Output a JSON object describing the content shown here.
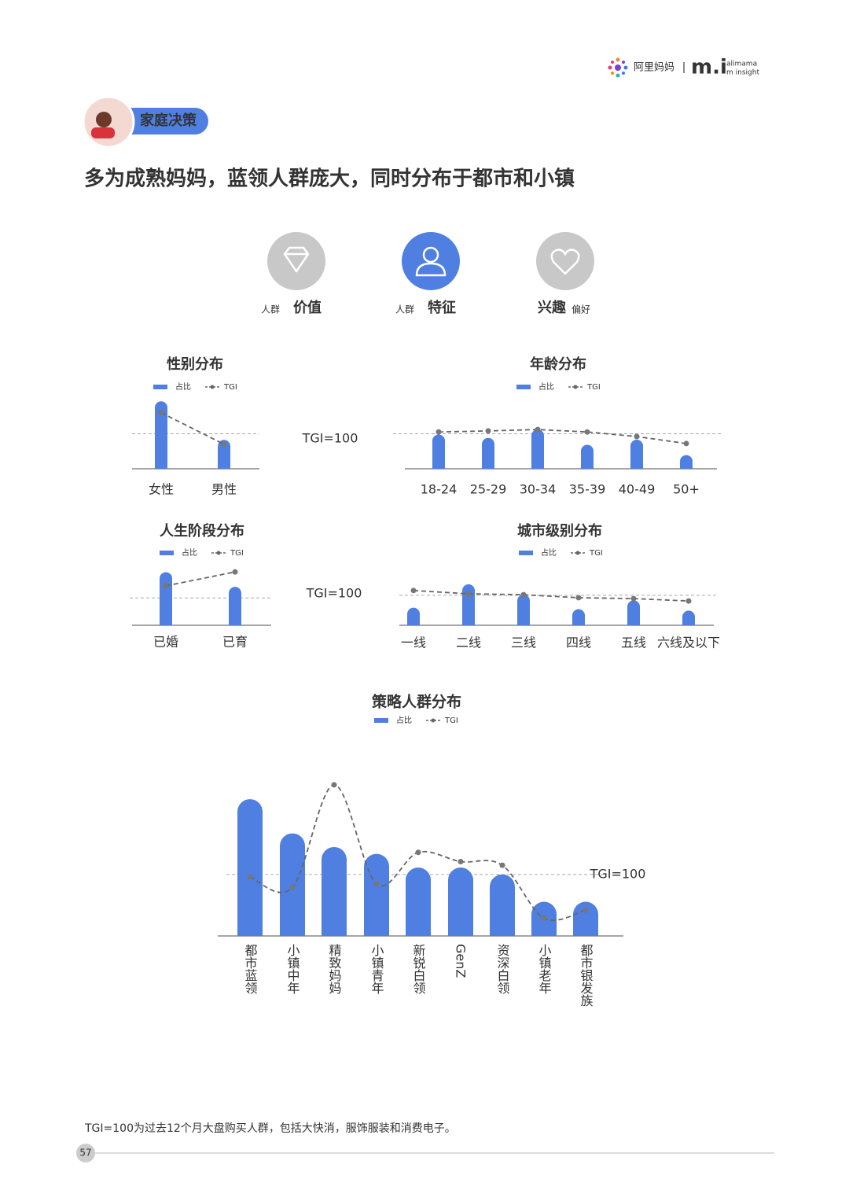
{
  "header": {
    "brand": "阿里妈妈",
    "logo": "m.i",
    "logo_sub1": "alimama",
    "logo_sub2": "m insight"
  },
  "section_tag": "家庭决策",
  "title": "多为成熟妈妈，蓝领人群庞大，同时分布于都市和小镇",
  "tabs": [
    {
      "small": "人群",
      "big": "价值"
    },
    {
      "small": "人群",
      "big": "特征"
    },
    {
      "big": "兴趣",
      "small": "偏好"
    }
  ],
  "chart_data": [
    {
      "type": "bar",
      "title": "性别分布",
      "categories": [
        "女性",
        "男性"
      ],
      "series": [
        {
          "name": "占比",
          "color": "#4f7fe0",
          "values": [
            70,
            30
          ]
        },
        {
          "name": "TGI",
          "color": "#666666",
          "values": [
            160,
            70
          ],
          "axis": "y2"
        }
      ],
      "ylim": [
        0,
        80
      ],
      "y2lim": [
        0,
        220
      ],
      "reference": {
        "value": 100,
        "label": "TGI=100"
      }
    },
    {
      "type": "bar",
      "title": "年龄分布",
      "categories": [
        "18-24",
        "25-29",
        "30-34",
        "35-39",
        "40-49",
        "50+"
      ],
      "series": [
        {
          "name": "占比",
          "color": "#4f7fe0",
          "values": [
            20,
            18,
            23,
            14,
            17,
            8
          ]
        },
        {
          "name": "TGI",
          "color": "#666666",
          "values": [
            105,
            108,
            112,
            105,
            92,
            72
          ],
          "axis": "y2"
        }
      ],
      "ylim": [
        0,
        45
      ],
      "y2lim": [
        0,
        220
      ],
      "reference": {
        "value": 100
      }
    },
    {
      "type": "bar",
      "title": "人生阶段分布",
      "categories": [
        "已婚",
        "已育"
      ],
      "series": [
        {
          "name": "占比",
          "color": "#4f7fe0",
          "values": [
            76,
            55
          ]
        },
        {
          "name": "TGI",
          "color": "#666666",
          "values": [
            144,
            195
          ],
          "axis": "y2"
        }
      ],
      "ylim": [
        0,
        90
      ],
      "y2lim": [
        0,
        230
      ],
      "reference": {
        "value": 100,
        "label": "TGI=100"
      }
    },
    {
      "type": "bar",
      "title": "城市级别分布",
      "categories": [
        "一线",
        "二线",
        "三线",
        "四线",
        "五线",
        "六线及以下"
      ],
      "series": [
        {
          "name": "占比",
          "color": "#4f7fe0",
          "values": [
            12,
            28,
            21,
            11,
            17,
            10
          ]
        },
        {
          "name": "TGI",
          "color": "#666666",
          "values": [
            116,
            105,
            102,
            92,
            89,
            81
          ],
          "axis": "y2"
        }
      ],
      "ylim": [
        0,
        43
      ],
      "y2lim": [
        0,
        210
      ],
      "reference": {
        "value": 100
      }
    },
    {
      "type": "bar",
      "title": "策略人群分布",
      "categories": [
        "都市蓝领",
        "小镇中年",
        "精致妈妈",
        "小镇青年",
        "新锐白领",
        "GenZ",
        "资深白领",
        "小镇老年",
        "都市银发族"
      ],
      "series": [
        {
          "name": "占比",
          "color": "#4f7fe0",
          "values": [
            20,
            15,
            13,
            12,
            10,
            10,
            9,
            5,
            5
          ]
        },
        {
          "name": "TGI",
          "color": "#666666",
          "values": [
            96,
            79,
            246,
            85,
            136,
            121,
            115,
            29,
            42
          ],
          "axis": "y2"
        }
      ],
      "ylim": [
        0,
        23
      ],
      "y2lim": [
        0,
        256
      ],
      "reference": {
        "value": 100,
        "label": "TGI=100"
      },
      "smooth": true
    }
  ],
  "footnote": "TGI=100为过去12个月大盘购买人群，包括大快消，服饰服装和消费电子。",
  "page_number": "57"
}
